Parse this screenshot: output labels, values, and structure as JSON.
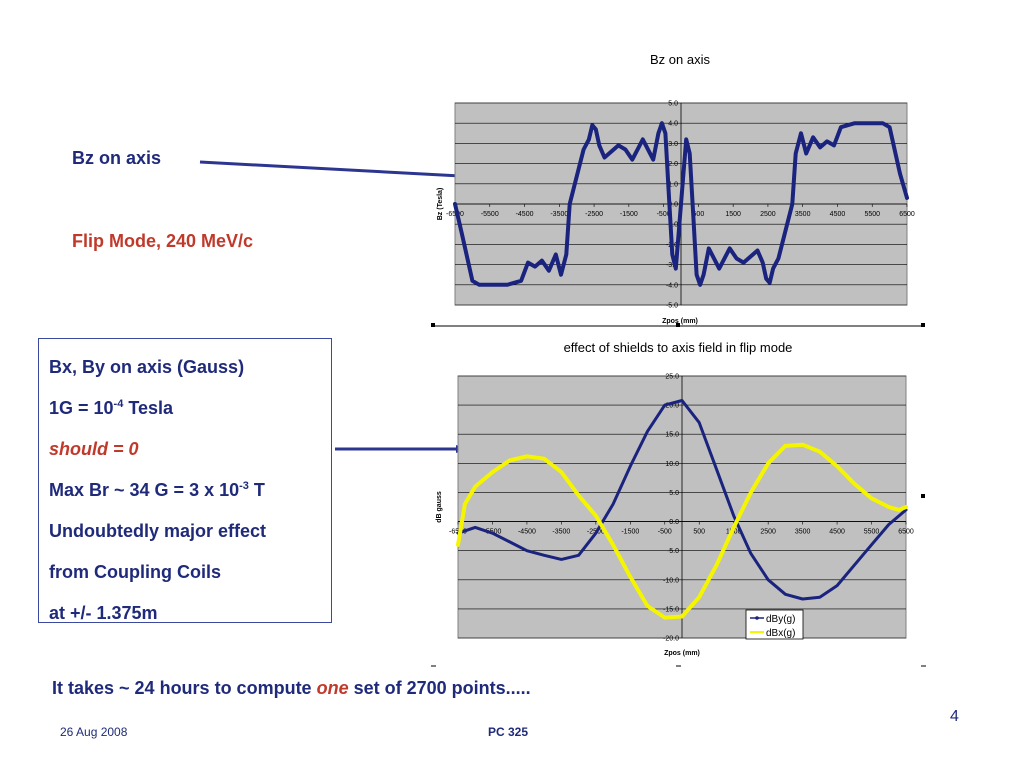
{
  "labels": {
    "bz_on_axis": "Bz on axis",
    "flip_mode": "Flip Mode, 240 MeV/c"
  },
  "textbox": {
    "line1": "Bx, By on axis (Gauss)",
    "line2_a": "1G = 10",
    "line2_sup": "-4",
    "line2_b": " Tesla",
    "line3": "should = 0",
    "line4_a": "Max Br ~ 34 G = 3 x 10",
    "line4_sup": "-3",
    "line4_b": " T",
    "line5": "Undoubtedly major effect",
    "line6": "from Coupling Coils",
    "line7": "at +/- 1.375m"
  },
  "bottom_note": {
    "part1": "It takes ~ 24 hours to compute ",
    "part2": "one",
    "part3": " set of 2700 points....."
  },
  "footer": {
    "date": "26 Aug 2008",
    "course": "PC 325",
    "page": "4"
  },
  "colors": {
    "navy": "#1f2a7a",
    "red": "#c0392b",
    "plot_bg": "#c0c0c0",
    "series_dark": "#1a237e",
    "series_yellow": "#f5f500"
  },
  "chart_data": [
    {
      "type": "line",
      "title": "Bz on axis",
      "xlabel": "Zpos (mm)",
      "ylabel": "Bz (Tesla)",
      "xlim": [
        -6500,
        6500
      ],
      "ylim": [
        -5,
        5
      ],
      "x_ticks": [
        "-6500",
        "-5500",
        "-4500",
        "-3500",
        "-2500",
        "-1500",
        "-500",
        "500",
        "1500",
        "2500",
        "3500",
        "4500",
        "5500",
        "6500"
      ],
      "y_ticks": [
        "5.0",
        "4.0",
        "3.0",
        "2.0",
        "1.0",
        "0.0",
        "-1.0",
        "-2.0",
        "-3.0",
        "-4.0",
        "-5.0"
      ],
      "grid": true,
      "series": [
        {
          "x": [
            -6500,
            -6300,
            -6000,
            -5800,
            -5000,
            -4600,
            -4400,
            -4200,
            -4000,
            -3800,
            -3600,
            -3450,
            -3300,
            -3200,
            -2800,
            -2650,
            -2550,
            -2450,
            -2350,
            -2200,
            -1800,
            -1600,
            -1400,
            -1100,
            -800,
            -650,
            -550,
            -450,
            -350,
            -250,
            -150,
            0,
            150,
            250,
            350,
            450,
            550,
            650,
            800,
            1100,
            1400,
            1600,
            1800,
            2200,
            2350,
            2450,
            2550,
            2650,
            2800,
            3200,
            3300,
            3450,
            3600,
            3800,
            4000,
            4200,
            4400,
            4600,
            5000,
            5800,
            6000,
            6300,
            6500
          ],
          "y": [
            0,
            -1.5,
            -3.8,
            -4.0,
            -4.0,
            -3.8,
            -2.9,
            -3.1,
            -2.8,
            -3.3,
            -2.5,
            -3.5,
            -2.5,
            0,
            2.7,
            3.2,
            3.9,
            3.7,
            2.9,
            2.3,
            2.9,
            2.7,
            2.2,
            3.2,
            2.2,
            3.5,
            4.0,
            3.5,
            0.5,
            -2.5,
            -3.2,
            0,
            3.2,
            2.5,
            -0.5,
            -3.5,
            -4.0,
            -3.5,
            -2.2,
            -3.2,
            -2.2,
            -2.7,
            -2.9,
            -2.3,
            -2.9,
            -3.7,
            -3.9,
            -3.2,
            -2.7,
            0,
            2.5,
            3.5,
            2.5,
            3.3,
            2.8,
            3.1,
            2.9,
            3.8,
            4.0,
            4.0,
            3.8,
            1.5,
            0.3
          ]
        }
      ]
    },
    {
      "type": "line",
      "title": "effect of shields to axis field in flip mode",
      "xlabel": "Zpos (mm)",
      "ylabel": "dB gauss",
      "xlim": [
        -6500,
        6500
      ],
      "ylim": [
        -20,
        25
      ],
      "x_ticks": [
        "-6500",
        "-5500",
        "-4500",
        "-3500",
        "-2500",
        "-1500",
        "-500",
        "500",
        "1500",
        "2500",
        "3500",
        "4500",
        "5500",
        "6500"
      ],
      "y_ticks": [
        "25.0",
        "20.0",
        "15.0",
        "10.0",
        "5.0",
        "0.0",
        "-5.0",
        "-10.0",
        "-15.0",
        "-20.0"
      ],
      "grid": true,
      "legend": "bottom-right",
      "series": [
        {
          "name": "dBy(g)",
          "x": [
            -6500,
            -6000,
            -5500,
            -5000,
            -4500,
            -4000,
            -3500,
            -3000,
            -2500,
            -2000,
            -1500,
            -1000,
            -500,
            0,
            500,
            1000,
            1500,
            2000,
            2500,
            3000,
            3500,
            4000,
            4500,
            5000,
            5500,
            6000,
            6500
          ],
          "y": [
            -2.0,
            -1.0,
            -2.0,
            -3.5,
            -5.0,
            -5.8,
            -6.5,
            -5.8,
            -2.0,
            3.0,
            9.5,
            15.5,
            20.0,
            20.8,
            17.0,
            9.0,
            1.0,
            -5.5,
            -10.0,
            -12.5,
            -13.3,
            -13.0,
            -11.0,
            -7.5,
            -4.0,
            -0.5,
            2.0
          ]
        },
        {
          "name": "dBx(g)",
          "x": [
            -6500,
            -6300,
            -6000,
            -5500,
            -5000,
            -4500,
            -4000,
            -3500,
            -3000,
            -2500,
            -2000,
            -1500,
            -1000,
            -500,
            0,
            500,
            1000,
            1500,
            2000,
            2500,
            3000,
            3500,
            4000,
            4500,
            5000,
            5500,
            6000,
            6300,
            6500
          ],
          "y": [
            -4.0,
            3.0,
            6.0,
            8.5,
            10.5,
            11.2,
            10.8,
            8.5,
            4.5,
            1.0,
            -4.0,
            -9.5,
            -14.5,
            -16.5,
            -16.3,
            -13.0,
            -7.5,
            -1.0,
            5.0,
            10.0,
            13.0,
            13.2,
            12.0,
            9.5,
            6.5,
            4.0,
            2.5,
            2.0,
            2.5
          ]
        }
      ]
    }
  ]
}
